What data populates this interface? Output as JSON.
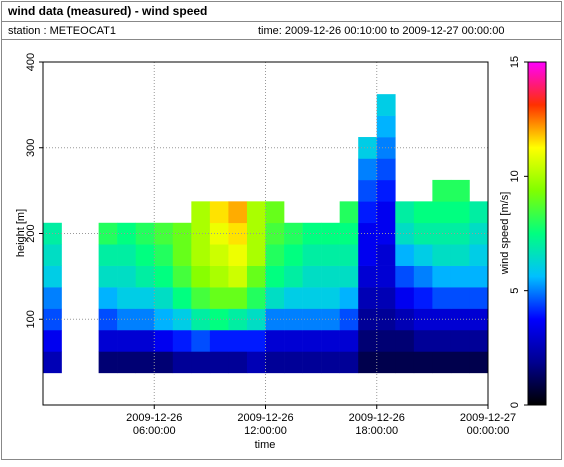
{
  "chart_data": {
    "type": "heatmap",
    "title": "wind data (measured) - wind speed",
    "station": "station : METEOCAT1",
    "time_range": "time: 2009-12-26 00:10:00 to 2009-12-27 00:00:00",
    "xlabel": "time",
    "ylabel": "height [m]",
    "colorbar_label": "wind speed [m/s]",
    "x": [
      "2009-12-26 00:30:00",
      "2009-12-26 01:30:00",
      "2009-12-26 02:30:00",
      "2009-12-26 03:30:00",
      "2009-12-26 04:30:00",
      "2009-12-26 05:30:00",
      "2009-12-26 06:30:00",
      "2009-12-26 07:30:00",
      "2009-12-26 08:30:00",
      "2009-12-26 09:30:00",
      "2009-12-26 10:30:00",
      "2009-12-26 11:30:00",
      "2009-12-26 12:30:00",
      "2009-12-26 13:30:00",
      "2009-12-26 14:30:00",
      "2009-12-26 15:30:00",
      "2009-12-26 16:30:00",
      "2009-12-26 17:30:00",
      "2009-12-26 18:30:00",
      "2009-12-26 19:30:00",
      "2009-12-26 20:30:00",
      "2009-12-26 21:30:00",
      "2009-12-26 22:30:00",
      "2009-12-26 23:30:00"
    ],
    "y": [
      50,
      75,
      100,
      125,
      150,
      175,
      200,
      225,
      250,
      275,
      300,
      325,
      350
    ],
    "z": [
      [
        2.5,
        null,
        null,
        1.5,
        1.5,
        1.5,
        1.5,
        2,
        2,
        2,
        2,
        2.5,
        2,
        2,
        2,
        2,
        2,
        1,
        1,
        1,
        1,
        1,
        1,
        1
      ],
      [
        3.5,
        null,
        null,
        3,
        3,
        3,
        3.5,
        4,
        4.5,
        4,
        4,
        4,
        3,
        3,
        3,
        3,
        3,
        1.5,
        1.5,
        1.5,
        2,
        2,
        2,
        2
      ],
      [
        4.5,
        null,
        null,
        4.5,
        5,
        5,
        5.5,
        6,
        7,
        7.5,
        7,
        6.5,
        5,
        5,
        5,
        5,
        4.5,
        2,
        2,
        2.5,
        3,
        3,
        3,
        3
      ],
      [
        5,
        null,
        null,
        5.5,
        6,
        6,
        6.5,
        7.5,
        8.5,
        9,
        9,
        8,
        6.5,
        6,
        6,
        6,
        5.5,
        2.5,
        2.5,
        3.5,
        4,
        4.5,
        4.5,
        4.5
      ],
      [
        6,
        null,
        null,
        6.5,
        6.5,
        7,
        7.5,
        8.5,
        9.5,
        10,
        10.5,
        9,
        7.5,
        7,
        6.5,
        6.5,
        6.5,
        3,
        3,
        4.5,
        5,
        5.5,
        5.5,
        5.5
      ],
      [
        6.5,
        null,
        null,
        7,
        7,
        7.5,
        8,
        9,
        10,
        10.5,
        11,
        10,
        8,
        7.5,
        7,
        7,
        7,
        3.5,
        3,
        5.5,
        6,
        6.5,
        6.5,
        6
      ],
      [
        7,
        null,
        null,
        8,
        7.5,
        8,
        8.5,
        9,
        10,
        11,
        11.5,
        10,
        8.5,
        8,
        7.5,
        7.5,
        7.5,
        3.5,
        3.5,
        6.5,
        7,
        7,
        7,
        6.5
      ],
      [
        null,
        null,
        null,
        null,
        null,
        null,
        null,
        null,
        10,
        11.5,
        12,
        10,
        9,
        null,
        null,
        null,
        8,
        4,
        3.5,
        7,
        7.5,
        7.5,
        7.5,
        7
      ],
      [
        null,
        null,
        null,
        null,
        null,
        null,
        null,
        null,
        null,
        null,
        null,
        null,
        null,
        null,
        null,
        null,
        null,
        4.5,
        4,
        null,
        null,
        8,
        8,
        null
      ],
      [
        null,
        null,
        null,
        null,
        null,
        null,
        null,
        null,
        null,
        null,
        null,
        null,
        null,
        null,
        null,
        null,
        null,
        5,
        4.5,
        null,
        null,
        null,
        null,
        null
      ],
      [
        null,
        null,
        null,
        null,
        null,
        null,
        null,
        null,
        null,
        null,
        null,
        null,
        null,
        null,
        null,
        null,
        null,
        6,
        5,
        null,
        null,
        null,
        null,
        null
      ],
      [
        null,
        null,
        null,
        null,
        null,
        null,
        null,
        null,
        null,
        null,
        null,
        null,
        null,
        null,
        null,
        null,
        null,
        null,
        5.5,
        null,
        null,
        null,
        null,
        null
      ],
      [
        null,
        null,
        null,
        null,
        null,
        null,
        null,
        null,
        null,
        null,
        null,
        null,
        null,
        null,
        null,
        null,
        null,
        null,
        6,
        null,
        null,
        null,
        null,
        null
      ]
    ],
    "xlim": [
      "2009-12-26 00:00:00",
      "2009-12-27 00:00:00"
    ],
    "xticks": [
      "2009-12-26 06:00:00",
      "2009-12-26 12:00:00",
      "2009-12-26 18:00:00",
      "2009-12-27 00:00:00"
    ],
    "ylim": [
      0,
      400
    ],
    "yticks": [
      100,
      200,
      300,
      400
    ],
    "clim": [
      0,
      15
    ],
    "cticks": [
      0,
      5,
      10,
      15
    ],
    "colorscale": [
      "#000000",
      "#000090",
      "#0000ff",
      "#00c0ff",
      "#00ff80",
      "#80ff00",
      "#ffff00",
      "#ff3000",
      "#ff00ff"
    ],
    "grid": true
  }
}
